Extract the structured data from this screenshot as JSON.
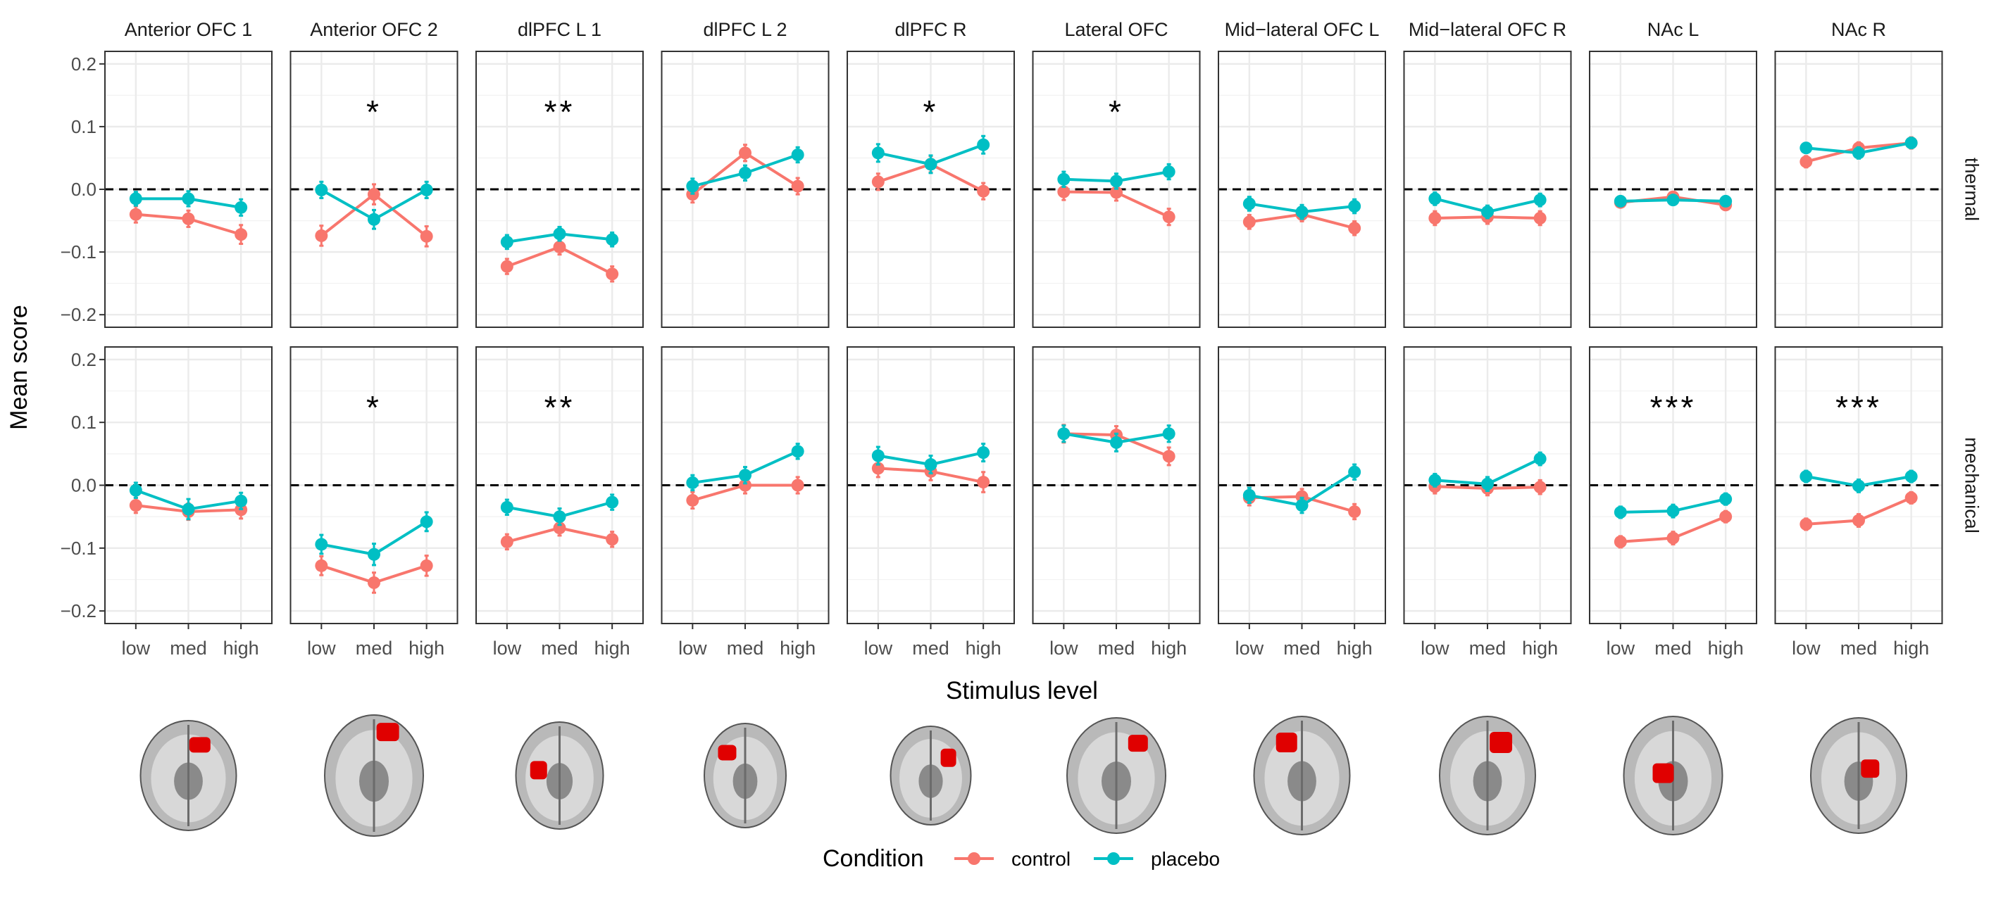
{
  "chart_data": {
    "type": "line",
    "ylabel": "Mean score",
    "xlabel": "Stimulus level",
    "categories": [
      "low",
      "med",
      "high"
    ],
    "ylim": [
      -0.22,
      0.22
    ],
    "yticks": [
      -0.2,
      -0.1,
      0.0,
      0.1,
      0.2
    ],
    "yticklabels": [
      "−0.2",
      "−0.1",
      "0.0",
      "0.1",
      "0.2"
    ],
    "reference_line": 0,
    "grid": true,
    "legend": {
      "title": "Condition",
      "position": "bottom",
      "entries": [
        {
          "name": "control",
          "color": "#F8766D"
        },
        {
          "name": "placebo",
          "color": "#00BFC4"
        }
      ]
    },
    "rows": [
      "thermal",
      "mechanical"
    ],
    "panels": [
      {
        "region": "Anterior OFC 1",
        "thermal": {
          "sig": "",
          "control": [
            -0.04,
            -0.047,
            -0.072
          ],
          "control_err": [
            0.013,
            0.013,
            0.015
          ],
          "placebo": [
            -0.015,
            -0.015,
            -0.029
          ],
          "placebo_err": [
            0.011,
            0.012,
            0.013
          ]
        },
        "mechanical": {
          "sig": "",
          "control": [
            -0.032,
            -0.042,
            -0.039
          ],
          "control_err": [
            0.012,
            0.013,
            0.014
          ],
          "placebo": [
            -0.008,
            -0.038,
            -0.025
          ],
          "placebo_err": [
            0.012,
            0.016,
            0.013
          ]
        }
      },
      {
        "region": "Anterior OFC 2",
        "thermal": {
          "sig": "*",
          "control": [
            -0.074,
            -0.008,
            -0.075
          ],
          "control_err": [
            0.016,
            0.016,
            0.016
          ],
          "placebo": [
            -0.001,
            -0.048,
            -0.001
          ],
          "placebo_err": [
            0.013,
            0.015,
            0.013
          ]
        },
        "mechanical": {
          "sig": "*",
          "control": [
            -0.128,
            -0.155,
            -0.128
          ],
          "control_err": [
            0.015,
            0.016,
            0.016
          ],
          "placebo": [
            -0.094,
            -0.11,
            -0.058
          ],
          "placebo_err": [
            0.015,
            0.017,
            0.015
          ]
        }
      },
      {
        "region": "dlPFC L 1",
        "thermal": {
          "sig": "**",
          "control": [
            -0.123,
            -0.092,
            -0.135
          ],
          "control_err": [
            0.012,
            0.012,
            0.012
          ],
          "placebo": [
            -0.084,
            -0.071,
            -0.08
          ],
          "placebo_err": [
            0.011,
            0.011,
            0.011
          ]
        },
        "mechanical": {
          "sig": "**",
          "control": [
            -0.09,
            -0.068,
            -0.086
          ],
          "control_err": [
            0.012,
            0.012,
            0.012
          ],
          "placebo": [
            -0.035,
            -0.05,
            -0.027
          ],
          "placebo_err": [
            0.012,
            0.013,
            0.012
          ]
        }
      },
      {
        "region": "dlPFC L 2",
        "thermal": {
          "sig": "",
          "control": [
            -0.008,
            0.058,
            0.005
          ],
          "control_err": [
            0.013,
            0.013,
            0.013
          ],
          "placebo": [
            0.005,
            0.026,
            0.055
          ],
          "placebo_err": [
            0.012,
            0.012,
            0.012
          ]
        },
        "mechanical": {
          "sig": "",
          "control": [
            -0.024,
            0.0,
            0.0
          ],
          "control_err": [
            0.013,
            0.013,
            0.013
          ],
          "placebo": [
            0.004,
            0.016,
            0.054
          ],
          "placebo_err": [
            0.012,
            0.013,
            0.012
          ]
        }
      },
      {
        "region": "dlPFC R",
        "thermal": {
          "sig": "*",
          "control": [
            0.012,
            0.04,
            -0.003
          ],
          "control_err": [
            0.013,
            0.013,
            0.013
          ],
          "placebo": [
            0.058,
            0.04,
            0.071
          ],
          "placebo_err": [
            0.014,
            0.014,
            0.014
          ]
        },
        "mechanical": {
          "sig": "",
          "control": [
            0.027,
            0.022,
            0.005
          ],
          "control_err": [
            0.014,
            0.014,
            0.016
          ],
          "placebo": [
            0.047,
            0.033,
            0.052
          ],
          "placebo_err": [
            0.014,
            0.014,
            0.014
          ]
        }
      },
      {
        "region": "Lateral OFC",
        "thermal": {
          "sig": "*",
          "control": [
            -0.004,
            -0.005,
            -0.044
          ],
          "control_err": [
            0.013,
            0.013,
            0.013
          ],
          "placebo": [
            0.016,
            0.013,
            0.028
          ],
          "placebo_err": [
            0.012,
            0.012,
            0.012
          ]
        },
        "mechanical": {
          "sig": "",
          "control": [
            0.082,
            0.08,
            0.046
          ],
          "control_err": [
            0.014,
            0.014,
            0.014
          ],
          "placebo": [
            0.082,
            0.068,
            0.082
          ],
          "placebo_err": [
            0.013,
            0.014,
            0.013
          ]
        }
      },
      {
        "region": "Mid−lateral OFC L",
        "thermal": {
          "sig": "",
          "control": [
            -0.052,
            -0.04,
            -0.062
          ],
          "control_err": [
            0.011,
            0.011,
            0.011
          ],
          "placebo": [
            -0.023,
            -0.036,
            -0.027
          ],
          "placebo_err": [
            0.011,
            0.011,
            0.011
          ]
        },
        "mechanical": {
          "sig": "",
          "control": [
            -0.02,
            -0.018,
            -0.042
          ],
          "control_err": [
            0.012,
            0.012,
            0.012
          ],
          "placebo": [
            -0.016,
            -0.032,
            0.021
          ],
          "placebo_err": [
            0.012,
            0.012,
            0.012
          ]
        }
      },
      {
        "region": "Mid−lateral OFC R",
        "thermal": {
          "sig": "",
          "control": [
            -0.046,
            -0.044,
            -0.046
          ],
          "control_err": [
            0.011,
            0.011,
            0.011
          ],
          "placebo": [
            -0.015,
            -0.036,
            -0.017
          ],
          "placebo_err": [
            0.01,
            0.01,
            0.01
          ]
        },
        "mechanical": {
          "sig": "",
          "control": [
            -0.002,
            -0.005,
            -0.003
          ],
          "control_err": [
            0.011,
            0.011,
            0.011
          ],
          "placebo": [
            0.008,
            0.002,
            0.042
          ],
          "placebo_err": [
            0.01,
            0.011,
            0.01
          ]
        }
      },
      {
        "region": "NAc L",
        "thermal": {
          "sig": "",
          "control": [
            -0.021,
            -0.012,
            -0.025
          ],
          "control_err": [
            0.007,
            0.007,
            0.007
          ],
          "placebo": [
            -0.019,
            -0.017,
            -0.019
          ],
          "placebo_err": [
            0.006,
            0.006,
            0.006
          ]
        },
        "mechanical": {
          "sig": "***",
          "control": [
            -0.09,
            -0.084,
            -0.05
          ],
          "control_err": [
            0.009,
            0.01,
            0.009
          ],
          "placebo": [
            -0.043,
            -0.041,
            -0.022
          ],
          "placebo_err": [
            0.009,
            0.01,
            0.009
          ]
        }
      },
      {
        "region": "NAc R",
        "thermal": {
          "sig": "",
          "control": [
            0.044,
            0.066,
            0.074
          ],
          "control_err": [
            0.009,
            0.009,
            0.009
          ],
          "placebo": [
            0.066,
            0.058,
            0.074
          ],
          "placebo_err": [
            0.008,
            0.009,
            0.008
          ]
        },
        "mechanical": {
          "sig": "***",
          "control": [
            -0.062,
            -0.056,
            -0.02
          ],
          "control_err": [
            0.009,
            0.01,
            0.009
          ],
          "placebo": [
            0.014,
            -0.001,
            0.014
          ],
          "placebo_err": [
            0.009,
            0.01,
            0.009
          ]
        }
      }
    ]
  },
  "brain_images": [
    {
      "icon": "brain-axial-slice",
      "highlight": "anterior-right",
      "highlight_color": "#E00000"
    },
    {
      "icon": "brain-axial-slice",
      "highlight": "anterior-right",
      "highlight_color": "#E00000"
    },
    {
      "icon": "brain-axial-slice",
      "highlight": "left-lateral",
      "highlight_color": "#E00000"
    },
    {
      "icon": "brain-axial-slice",
      "highlight": "left-anterior",
      "highlight_color": "#E00000"
    },
    {
      "icon": "brain-axial-slice",
      "highlight": "right-lateral",
      "highlight_color": "#E00000"
    },
    {
      "icon": "brain-axial-slice",
      "highlight": "right-frontal",
      "highlight_color": "#E00000"
    },
    {
      "icon": "brain-axial-slice",
      "highlight": "left-orbital",
      "highlight_color": "#E00000"
    },
    {
      "icon": "brain-axial-slice",
      "highlight": "right-orbital",
      "highlight_color": "#E00000"
    },
    {
      "icon": "brain-axial-slice",
      "highlight": "left-ventral",
      "highlight_color": "#E00000"
    },
    {
      "icon": "brain-axial-slice",
      "highlight": "right-ventral",
      "highlight_color": "#E00000"
    }
  ]
}
